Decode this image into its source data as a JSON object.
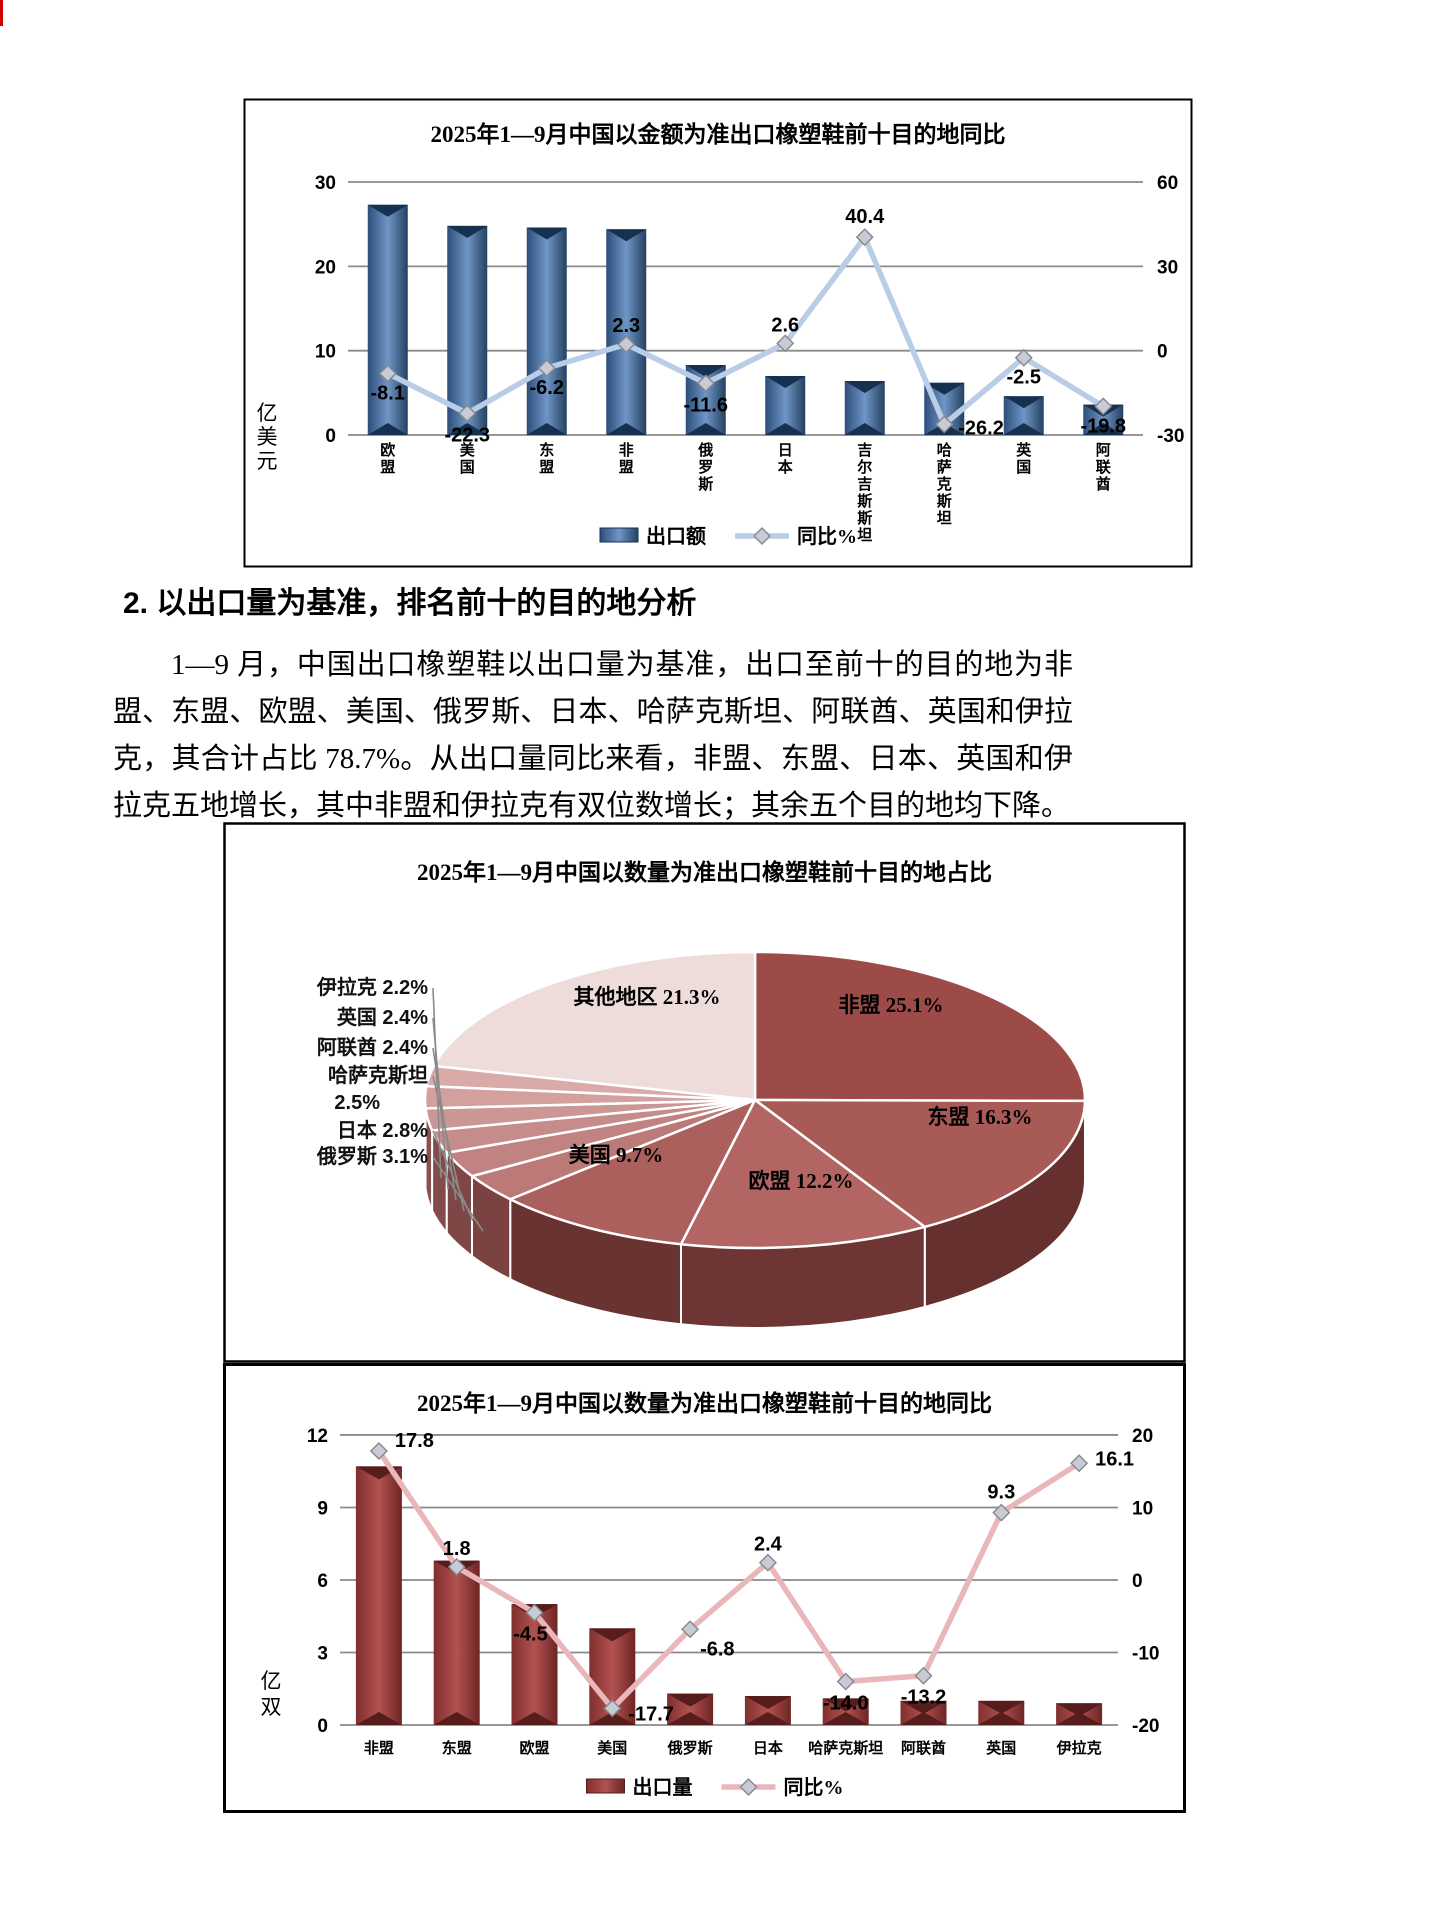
{
  "page": {
    "heading": "2. 以出口量为基准，排名前十的目的地分析",
    "paragraph": "1—9 月，中国出口橡塑鞋以出口量为基准，出口至前十的目的地为非盟、东盟、欧盟、美国、俄罗斯、日本、哈萨克斯坦、阿联酋、英国和伊拉克，其合计占比 78.7%。从出口量同比来看，非盟、东盟、日本、英国和伊拉克五地增长，其中非盟和伊拉克有双位数增长；其余五个目的地均下降。"
  },
  "chart_data": [
    {
      "id": "money",
      "type": "bar",
      "title": "2025年1—9月中国以金额为准出口橡塑鞋前十目的地同比",
      "categories": [
        "欧盟",
        "美国",
        "东盟",
        "非盟",
        "俄罗斯",
        "日本",
        "吉尔吉斯斯坦",
        "哈萨克斯坦",
        "英国",
        "阿联酋"
      ],
      "series": [
        {
          "name": "出口额",
          "type": "bar",
          "unit": "亿美元",
          "values": [
            27.3,
            24.8,
            24.6,
            24.4,
            8.3,
            7.0,
            6.4,
            6.2,
            4.6,
            3.6
          ]
        },
        {
          "name": "同比%",
          "type": "line",
          "values": [
            -8.1,
            -22.3,
            -6.2,
            2.3,
            -11.6,
            2.6,
            40.4,
            -26.2,
            -2.5,
            -19.8
          ]
        }
      ],
      "left_axis": {
        "unit": "亿美元",
        "ticks": [
          0,
          10,
          20,
          30
        ],
        "range": [
          0,
          30
        ]
      },
      "right_axis": {
        "ticks": [
          -30,
          0,
          30,
          60
        ],
        "range": [
          -30,
          60
        ]
      },
      "legend": [
        "出口额",
        "同比%"
      ],
      "label_colors": [
        "#ffffff",
        "#ffffff",
        "#ffffff",
        "#000000",
        "#ffffff",
        "#000000",
        "#000000",
        "#000000",
        "#000000",
        "#ffffff"
      ],
      "bar_color": "#3c6595",
      "line_color": "#b9cde6",
      "grid": true,
      "legend_position": "bottom"
    },
    {
      "id": "share",
      "type": "pie",
      "title": "2025年1—9月中国以数量为准出口橡塑鞋前十目的地占比",
      "labels": [
        "非盟",
        "东盟",
        "欧盟",
        "美国",
        "俄罗斯",
        "日本",
        "哈萨克斯坦",
        "阿联酋",
        "英国",
        "伊拉克",
        "其他地区"
      ],
      "values": [
        25.1,
        16.3,
        12.2,
        9.7,
        3.1,
        2.8,
        2.5,
        2.4,
        2.4,
        2.2,
        21.3
      ],
      "colors": [
        "#9c4b48",
        "#a85a57",
        "#b26562",
        "#ac605d",
        "#bb7a77",
        "#c08381",
        "#c68c8a",
        "#cc9694",
        "#d3a09e",
        "#d9aaa8",
        "#eedcdb"
      ],
      "wall_colors": [
        "#5e2b29",
        "#66302e",
        "#6d3533",
        "#693331",
        "#7a4240",
        "#7e4644",
        "#834b49",
        "#885150",
        "#8e5755",
        "#945d5b",
        "#c09795"
      ]
    },
    {
      "id": "qty",
      "type": "bar",
      "title": "2025年1—9月中国以数量为准出口橡塑鞋前十目的地同比",
      "categories": [
        "非盟",
        "东盟",
        "欧盟",
        "美国",
        "俄罗斯",
        "日本",
        "哈萨克斯坦",
        "阿联酋",
        "英国",
        "伊拉克"
      ],
      "series": [
        {
          "name": "出口量",
          "type": "bar",
          "unit": "亿双",
          "values": [
            10.7,
            6.8,
            5.0,
            4.0,
            1.3,
            1.2,
            1.1,
            1.0,
            1.0,
            0.9
          ]
        },
        {
          "name": "同比%",
          "type": "line",
          "values": [
            17.8,
            1.8,
            -4.5,
            -17.7,
            -6.8,
            2.4,
            -14.0,
            -13.2,
            9.3,
            16.1
          ]
        }
      ],
      "left_axis": {
        "unit": "亿双",
        "ticks": [
          0,
          3,
          6,
          9,
          12
        ],
        "range": [
          0,
          12
        ]
      },
      "right_axis": {
        "ticks": [
          -20,
          -10,
          0,
          10,
          20
        ],
        "range": [
          -20,
          20
        ]
      },
      "legend": [
        "出口量",
        "同比%"
      ],
      "label_colors": [
        "#000000",
        "#000000",
        "#ffffff",
        "#000000",
        "#000000",
        "#000000",
        "#000000",
        "#000000",
        "#000000",
        "#000000"
      ],
      "bar_color": "#a24240",
      "line_color": "#e9b7ba",
      "grid": true,
      "legend_position": "bottom"
    }
  ]
}
